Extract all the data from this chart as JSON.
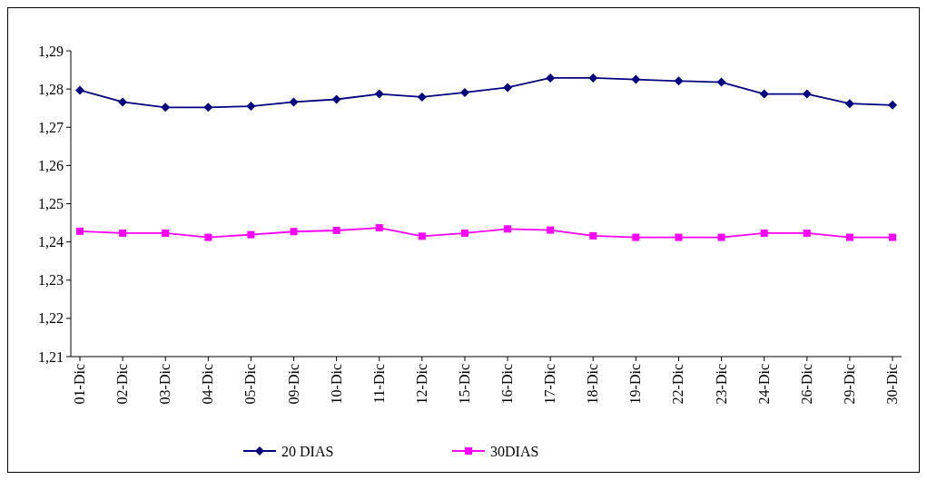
{
  "chart_data": {
    "type": "line",
    "categories": [
      "01-Dic",
      "02-Dic",
      "03-Dic",
      "04-Dic",
      "05-Dic",
      "09-Dic",
      "10-Dic",
      "11-Dic",
      "12-Dic",
      "15-Dic",
      "16-Dic",
      "17-Dic",
      "18-Dic",
      "19-Dic",
      "22-Dic",
      "23-Dic",
      "24-Dic",
      "26-Dic",
      "29-Dic",
      "30-Dic"
    ],
    "series": [
      {
        "name": "20 DIAS",
        "color": "#000080",
        "marker": "diamond",
        "values": [
          1.2797,
          1.2766,
          1.2752,
          1.2752,
          1.2755,
          1.2766,
          1.2773,
          1.2787,
          1.2779,
          1.2791,
          1.2804,
          1.2829,
          1.2829,
          1.2825,
          1.2821,
          1.2818,
          1.2787,
          1.2787,
          1.2762,
          1.2758
        ]
      },
      {
        "name": "30DIAS",
        "color": "#ff00ff",
        "marker": "square",
        "values": [
          1.2428,
          1.2423,
          1.2423,
          1.2412,
          1.2419,
          1.2427,
          1.243,
          1.2437,
          1.2415,
          1.2423,
          1.2434,
          1.2431,
          1.2416,
          1.2412,
          1.2412,
          1.2412,
          1.2423,
          1.2423,
          1.2412,
          1.2412
        ]
      }
    ],
    "ylim": [
      1.21,
      1.29
    ],
    "yticks": [
      {
        "value": 1.21,
        "label": "1,21"
      },
      {
        "value": 1.22,
        "label": "1,22"
      },
      {
        "value": 1.23,
        "label": "1,23"
      },
      {
        "value": 1.24,
        "label": "1,24"
      },
      {
        "value": 1.25,
        "label": "1,25"
      },
      {
        "value": 1.26,
        "label": "1,26"
      },
      {
        "value": 1.27,
        "label": "1,27"
      },
      {
        "value": 1.28,
        "label": "1,28"
      },
      {
        "value": 1.29,
        "label": "1,29"
      }
    ],
    "grid": false,
    "legend": "bottom"
  }
}
